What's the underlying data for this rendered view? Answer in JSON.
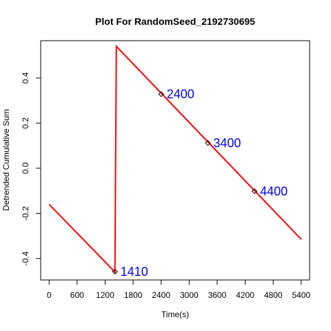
{
  "chart_data": {
    "type": "line",
    "title": "Plot For RandomSeed_2192730695",
    "xlabel": "Time(s)",
    "ylabel": "Detrended Cumulative Sum",
    "xlim": [
      -180,
      5580
    ],
    "ylim": [
      -0.495,
      0.565
    ],
    "xticks": [
      0,
      600,
      1200,
      1800,
      2400,
      3000,
      3600,
      4200,
      4800,
      5400
    ],
    "xtick_labels": [
      "0",
      "600",
      "1200",
      "1800",
      "2400",
      "3000",
      "3600",
      "4200",
      "4800",
      "5400"
    ],
    "yticks": [
      -0.4,
      -0.2,
      0.0,
      0.2,
      0.4
    ],
    "ytick_labels": [
      "-0.4",
      "-0.2",
      "0.0",
      "0.2",
      "0.4"
    ],
    "series": [
      {
        "name": "detrended cumulative sum",
        "color": "#ff0000",
        "points": [
          [
            0,
            -0.16
          ],
          [
            1410,
            -0.46
          ],
          [
            1440,
            0.54
          ],
          [
            5400,
            -0.315
          ]
        ]
      }
    ],
    "annotations": [
      {
        "x": 1410,
        "y": -0.458,
        "label": "1410"
      },
      {
        "x": 2400,
        "y": 0.328,
        "label": "2400"
      },
      {
        "x": 3400,
        "y": 0.112,
        "label": "3400"
      },
      {
        "x": 4400,
        "y": -0.102,
        "label": "4400"
      }
    ],
    "annotation_color": "#0000ff",
    "marker_color": "#000000",
    "grid": false
  }
}
